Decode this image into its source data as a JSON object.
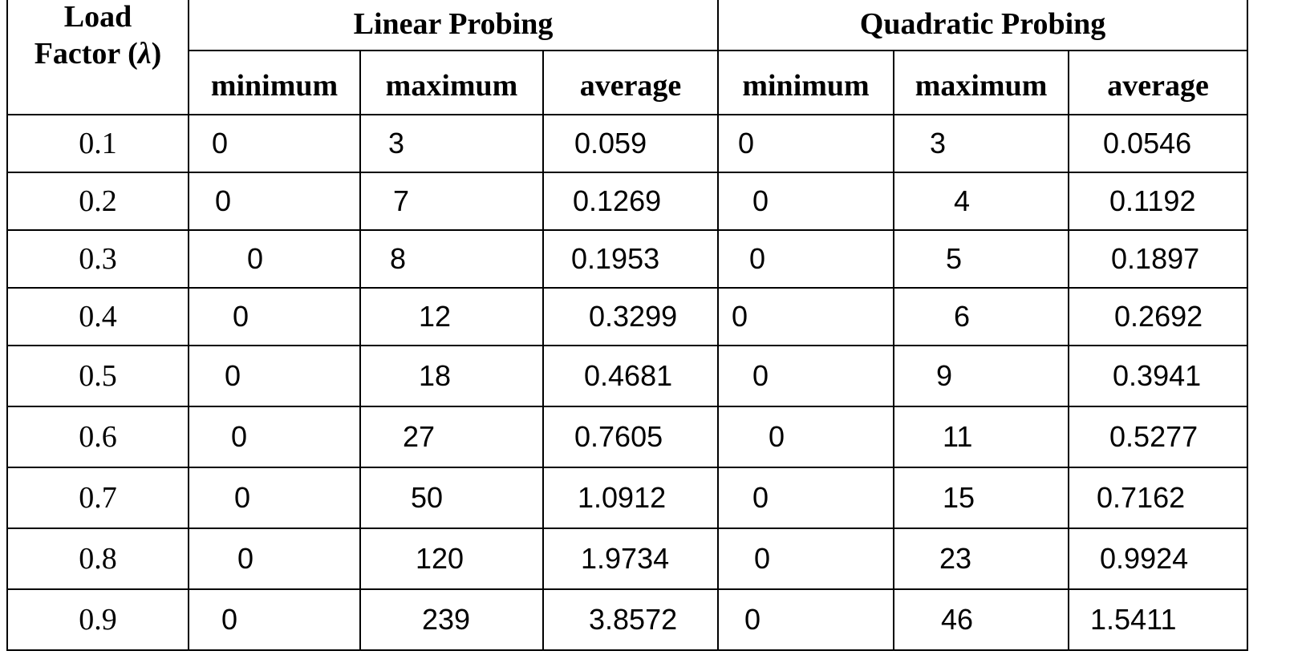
{
  "table": {
    "header": {
      "load_factor_line1": "Load",
      "load_factor_line2": "Factor (",
      "load_factor_symbol": "λ",
      "load_factor_close": ")",
      "groups": [
        "Linear Probing",
        "Quadratic Probing"
      ],
      "subcolumns": [
        "minimum",
        "maximum",
        "average",
        "minimum",
        "maximum",
        "average"
      ]
    },
    "rows": [
      {
        "lambda": "0.1",
        "lp_min": "0",
        "lp_max": "3",
        "lp_avg": "0.059",
        "qp_min": "0",
        "qp_max": "3",
        "qp_avg": "0.0546"
      },
      {
        "lambda": "0.2",
        "lp_min": "0",
        "lp_max": "7",
        "lp_avg": "0.1269",
        "qp_min": "0",
        "qp_max": "4",
        "qp_avg": "0.1192"
      },
      {
        "lambda": "0.3",
        "lp_min": "0",
        "lp_max": "8",
        "lp_avg": "0.1953",
        "qp_min": "0",
        "qp_max": "5",
        "qp_avg": "0.1897"
      },
      {
        "lambda": "0.4",
        "lp_min": "0",
        "lp_max": "12",
        "lp_avg": "0.3299",
        "qp_min": "0",
        "qp_max": "6",
        "qp_avg": "0.2692"
      },
      {
        "lambda": "0.5",
        "lp_min": "0",
        "lp_max": "18",
        "lp_avg": "0.4681",
        "qp_min": "0",
        "qp_max": "9",
        "qp_avg": "0.3941"
      },
      {
        "lambda": "0.6",
        "lp_min": "0",
        "lp_max": "27",
        "lp_avg": "0.7605",
        "qp_min": "0",
        "qp_max": "11",
        "qp_avg": "0.5277"
      },
      {
        "lambda": "0.7",
        "lp_min": "0",
        "lp_max": "50",
        "lp_avg": "1.0912",
        "qp_min": "0",
        "qp_max": "15",
        "qp_avg": "0.7162"
      },
      {
        "lambda": "0.8",
        "lp_min": "0",
        "lp_max": "120",
        "lp_avg": "1.9734",
        "qp_min": "0",
        "qp_max": "23",
        "qp_avg": "0.9924"
      },
      {
        "lambda": "0.9",
        "lp_min": "0",
        "lp_max": "239",
        "lp_avg": "3.8572",
        "qp_min": "0",
        "qp_max": "46",
        "qp_avg": "1.5411"
      }
    ]
  }
}
